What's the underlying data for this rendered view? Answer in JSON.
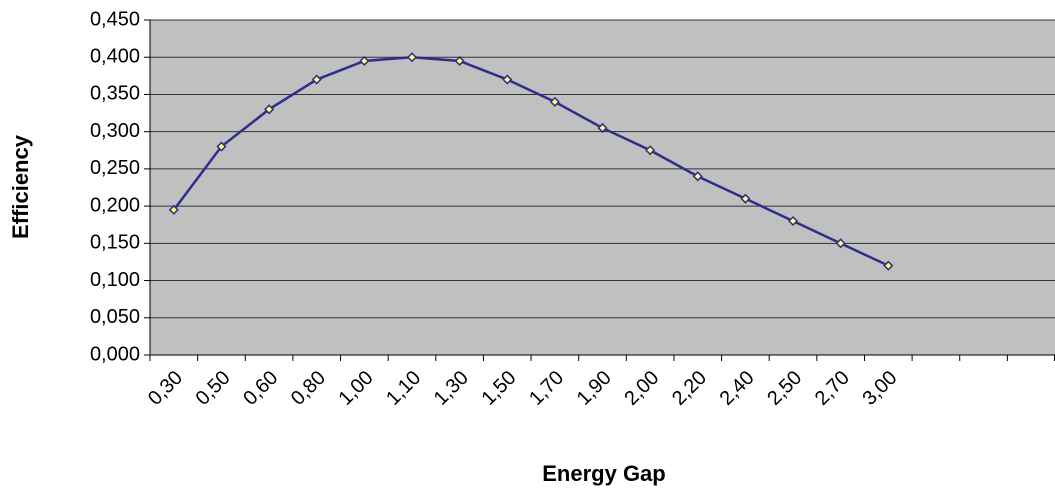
{
  "chart_data": {
    "type": "line",
    "x_label": "Energy Gap",
    "y_label": "Efficiency",
    "categories": [
      "0,30",
      "0,50",
      "0,60",
      "0,80",
      "1,00",
      "1,10",
      "1,30",
      "1,50",
      "1,70",
      "1,90",
      "2,00",
      "2,20",
      "2,40",
      "2,50",
      "2,70",
      "3,00",
      null,
      null,
      null
    ],
    "values": [
      0.195,
      0.28,
      0.33,
      0.37,
      0.395,
      0.4,
      0.395,
      0.37,
      0.34,
      0.305,
      0.275,
      0.24,
      0.21,
      0.18,
      0.15,
      0.12,
      null,
      null,
      null
    ],
    "color": "#2e2e8c",
    "marker_color": "#ffff66",
    "ylim": [
      0,
      0.45
    ],
    "yticks": [
      {
        "value": 0,
        "label": "0,000"
      },
      {
        "value": 0.05,
        "label": "0,050"
      },
      {
        "value": 0.1,
        "label": "0,100"
      },
      {
        "value": 0.15,
        "label": "0,150"
      },
      {
        "value": 0.2,
        "label": "0,200"
      },
      {
        "value": 0.25,
        "label": "0,250"
      },
      {
        "value": 0.3,
        "label": "0,300"
      },
      {
        "value": 0.35,
        "label": "0,350"
      },
      {
        "value": 0.4,
        "label": "0,400"
      },
      {
        "value": 0.45,
        "label": "0,450"
      }
    ],
    "grid": true,
    "plot_background": "#c0c0c0"
  }
}
